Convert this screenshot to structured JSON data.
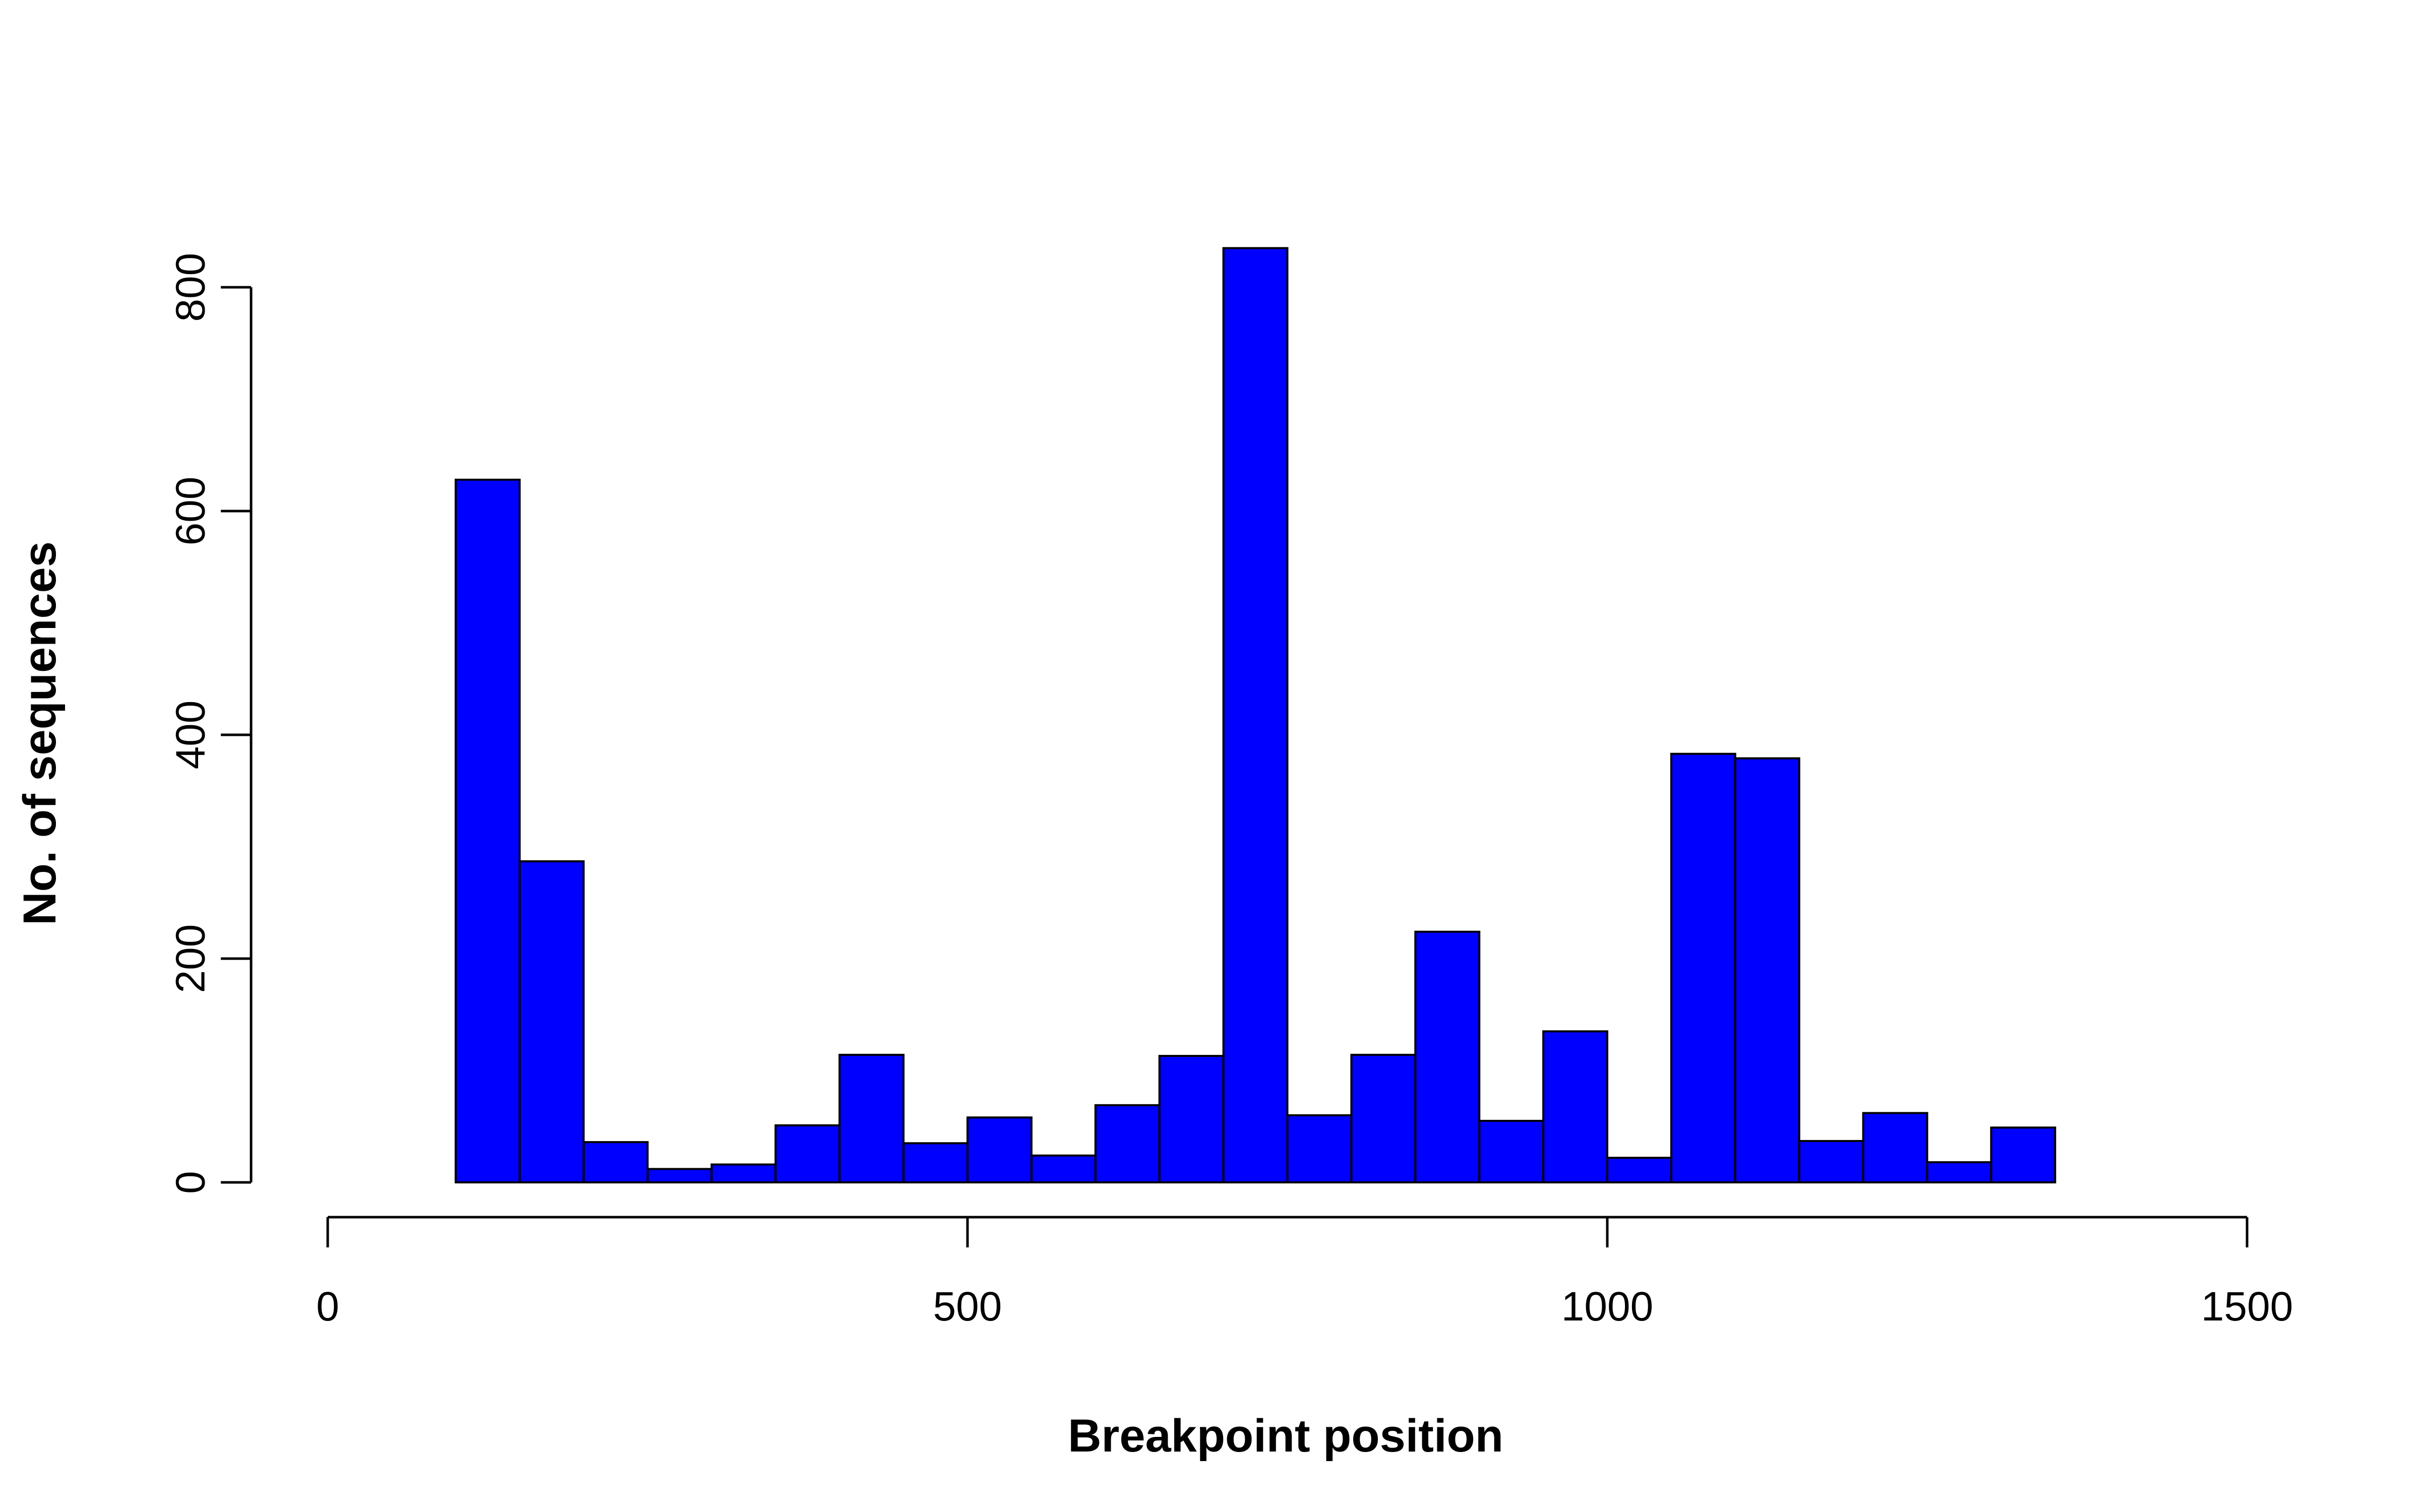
{
  "chart_data": {
    "type": "bar",
    "subtype": "histogram",
    "bar_color": "#0000ff",
    "bar_outline_color": "#000000",
    "bin_width": 50,
    "bins": [
      {
        "start": 100,
        "end": 150,
        "count": 628
      },
      {
        "start": 150,
        "end": 200,
        "count": 287
      },
      {
        "start": 200,
        "end": 250,
        "count": 36
      },
      {
        "start": 250,
        "end": 300,
        "count": 12
      },
      {
        "start": 300,
        "end": 350,
        "count": 16
      },
      {
        "start": 350,
        "end": 400,
        "count": 51
      },
      {
        "start": 400,
        "end": 450,
        "count": 114
      },
      {
        "start": 450,
        "end": 500,
        "count": 35
      },
      {
        "start": 500,
        "end": 550,
        "count": 58
      },
      {
        "start": 550,
        "end": 600,
        "count": 24
      },
      {
        "start": 600,
        "end": 650,
        "count": 69
      },
      {
        "start": 650,
        "end": 700,
        "count": 113
      },
      {
        "start": 700,
        "end": 750,
        "count": 835
      },
      {
        "start": 750,
        "end": 800,
        "count": 60
      },
      {
        "start": 800,
        "end": 850,
        "count": 114
      },
      {
        "start": 850,
        "end": 900,
        "count": 224
      },
      {
        "start": 900,
        "end": 950,
        "count": 55
      },
      {
        "start": 950,
        "end": 1000,
        "count": 135
      },
      {
        "start": 1000,
        "end": 1050,
        "count": 22
      },
      {
        "start": 1050,
        "end": 1100,
        "count": 383
      },
      {
        "start": 1100,
        "end": 1150,
        "count": 379
      },
      {
        "start": 1150,
        "end": 1200,
        "count": 37
      },
      {
        "start": 1200,
        "end": 1250,
        "count": 62
      },
      {
        "start": 1250,
        "end": 1300,
        "count": 18
      },
      {
        "start": 1300,
        "end": 1350,
        "count": 49
      }
    ],
    "xlabel": "Breakpoint position",
    "ylabel": "No. of sequences",
    "xlim": [
      0,
      1500
    ],
    "ylim": [
      0,
      800
    ],
    "xticks": [
      "0",
      "500",
      "1000",
      "1500"
    ],
    "yticks": [
      "0",
      "200",
      "400",
      "600",
      "800"
    ],
    "grid": false,
    "legend": "none"
  }
}
